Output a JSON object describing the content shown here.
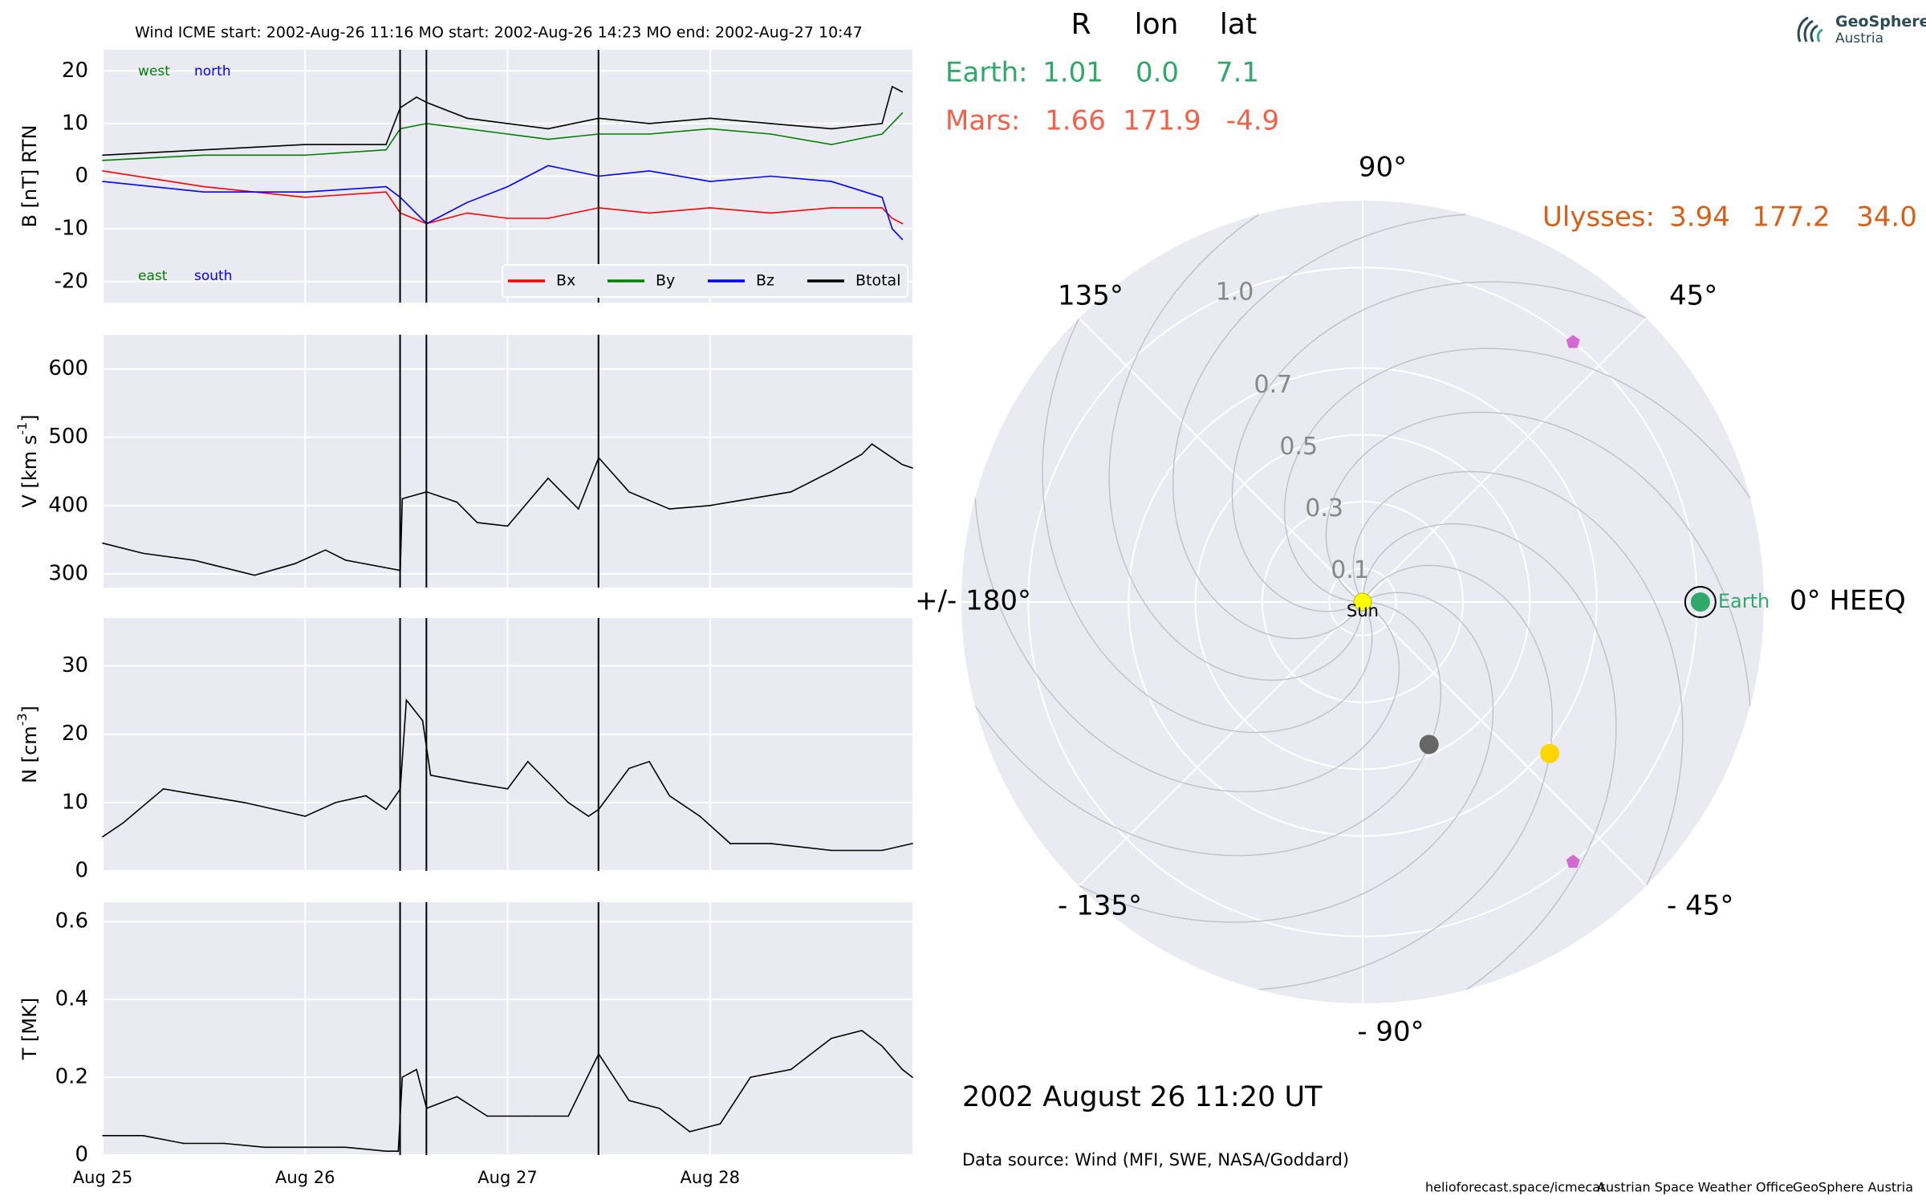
{
  "header": {
    "title": "Wind    ICME start: 2002-Aug-26 11:16   MO start: 2002-Aug-26 14:23   MO end: 2002-Aug-27 10:47"
  },
  "logo": {
    "line1": "GeoSphere",
    "line2": "Austria"
  },
  "positions_table": {
    "columns": [
      "R",
      "lon",
      "lat"
    ],
    "rows": [
      {
        "name": "Earth:",
        "R": "1.01",
        "lon": "0.0",
        "lat": "7.1",
        "color": "#2fa86a"
      },
      {
        "name": "Mars:",
        "R": "1.66",
        "lon": "171.9",
        "lat": "-4.9",
        "color": "#f26149"
      },
      {
        "name": "Ulysses:",
        "R": "3.94",
        "lon": "177.2",
        "lat": "34.0",
        "color": "#d8601a"
      }
    ]
  },
  "datetime": "2002 August 26  11:20 UT",
  "data_source": "Data source: Wind (MFI, SWE, NASA/Goddard)",
  "footer": {
    "left": "helioforecast.space/icmecat",
    "middle": "Austrian Space Weather Office",
    "right": "GeoSphere Austria"
  },
  "colors": {
    "panel_bg": "#eaeaf2",
    "bx": "#ff0000",
    "by": "#008000",
    "bz": "#0000ff",
    "btotal": "#000000",
    "earth": "#2fa86a",
    "mercury": "#666666",
    "venus": "#ffd700",
    "spacecraft": "#d26ad2"
  },
  "chart_data": [
    {
      "type": "line",
      "id": "mag",
      "ylabel": "B [nT] RTN",
      "ylim": [
        -24,
        24
      ],
      "yticks": [
        20,
        10,
        0,
        -10,
        -20
      ],
      "xlim": [
        0,
        4.0
      ],
      "x_unit": "days since 2002-08-25 00:00",
      "x_ticks": [
        0,
        1,
        2,
        3
      ],
      "x_tick_labels": [
        "Aug 25",
        "Aug 26",
        "Aug 27",
        "Aug 28"
      ],
      "event_lines": [
        1.469,
        1.599,
        2.449
      ],
      "annotations": [
        {
          "text": "west",
          "color": "#008000"
        },
        {
          "text": "north",
          "color": "#0000ff"
        },
        {
          "text": "east",
          "color": "#008000"
        },
        {
          "text": "south",
          "color": "#0000ff"
        }
      ],
      "legend": [
        "Bx",
        "By",
        "Bz",
        "Btotal"
      ],
      "legend_position": "lower-right",
      "series": [
        {
          "name": "Btotal",
          "x": [
            0,
            0.5,
            1.0,
            1.4,
            1.47,
            1.55,
            1.6,
            1.8,
            2.0,
            2.2,
            2.45,
            2.7,
            3.0,
            3.3,
            3.6,
            3.85,
            3.9,
            3.95
          ],
          "y": [
            4,
            5,
            6,
            6,
            13,
            15,
            14,
            11,
            10,
            9,
            11,
            10,
            11,
            10,
            9,
            10,
            17,
            16
          ]
        },
        {
          "name": "By",
          "x": [
            0,
            0.5,
            1.0,
            1.4,
            1.47,
            1.6,
            1.8,
            2.0,
            2.2,
            2.45,
            2.7,
            3.0,
            3.3,
            3.6,
            3.85,
            3.9,
            3.95
          ],
          "y": [
            3,
            4,
            4,
            5,
            9,
            10,
            9,
            8,
            7,
            8,
            8,
            9,
            8,
            6,
            8,
            10,
            12
          ]
        },
        {
          "name": "Bx",
          "x": [
            0,
            0.5,
            1.0,
            1.4,
            1.47,
            1.6,
            1.8,
            2.0,
            2.2,
            2.45,
            2.7,
            3.0,
            3.3,
            3.6,
            3.85,
            3.9,
            3.95
          ],
          "y": [
            1,
            -2,
            -4,
            -3,
            -7,
            -9,
            -7,
            -8,
            -8,
            -6,
            -7,
            -6,
            -7,
            -6,
            -6,
            -8,
            -9
          ]
        },
        {
          "name": "Bz",
          "x": [
            0,
            0.5,
            1.0,
            1.4,
            1.47,
            1.6,
            1.8,
            2.0,
            2.2,
            2.45,
            2.7,
            3.0,
            3.3,
            3.6,
            3.85,
            3.9,
            3.95
          ],
          "y": [
            -1,
            -3,
            -3,
            -2,
            -4,
            -9,
            -5,
            -2,
            2,
            0,
            1,
            -1,
            0,
            -1,
            -4,
            -10,
            -12
          ]
        }
      ]
    },
    {
      "type": "line",
      "id": "speed",
      "ylabel": "V [km s$^{-1}$]",
      "ylim": [
        280,
        650
      ],
      "yticks": [
        600,
        500,
        400,
        300
      ],
      "xlim": [
        0,
        4.0
      ],
      "event_lines": [
        1.469,
        1.599,
        2.449
      ],
      "series": [
        {
          "name": "V",
          "x": [
            0,
            0.2,
            0.45,
            0.75,
            0.95,
            1.1,
            1.2,
            1.47,
            1.48,
            1.6,
            1.75,
            1.85,
            2.0,
            2.2,
            2.35,
            2.45,
            2.6,
            2.8,
            3.0,
            3.2,
            3.4,
            3.6,
            3.75,
            3.8,
            3.95,
            4.0
          ],
          "y": [
            345,
            330,
            320,
            298,
            315,
            335,
            320,
            305,
            410,
            420,
            405,
            375,
            370,
            440,
            395,
            470,
            420,
            395,
            400,
            410,
            420,
            450,
            475,
            490,
            460,
            455
          ]
        }
      ]
    },
    {
      "type": "line",
      "id": "density",
      "ylabel": "N [cm$^{-3}$]",
      "ylim": [
        0,
        37
      ],
      "yticks": [
        30,
        20,
        10,
        0
      ],
      "xlim": [
        0,
        4.0
      ],
      "event_lines": [
        1.469,
        1.599,
        2.449
      ],
      "series": [
        {
          "name": "N",
          "x": [
            0,
            0.1,
            0.3,
            0.5,
            0.7,
            0.85,
            1.0,
            1.15,
            1.3,
            1.4,
            1.47,
            1.5,
            1.58,
            1.62,
            1.8,
            2.0,
            2.1,
            2.3,
            2.4,
            2.45,
            2.6,
            2.7,
            2.8,
            2.95,
            3.1,
            3.3,
            3.6,
            3.85,
            4.0
          ],
          "y": [
            5,
            7,
            12,
            11,
            10,
            9,
            8,
            10,
            11,
            9,
            12,
            25,
            22,
            14,
            13,
            12,
            16,
            10,
            8,
            9,
            15,
            16,
            11,
            8,
            4,
            4,
            3,
            3,
            4
          ]
        }
      ]
    },
    {
      "type": "line",
      "id": "temperature",
      "ylabel": "T [MK]",
      "ylim": [
        0,
        0.65
      ],
      "yticks": [
        0.6,
        0.4,
        0.2,
        0.0
      ],
      "xlim": [
        0,
        4.0
      ],
      "x_ticks": [
        0,
        1,
        2,
        3
      ],
      "x_tick_labels": [
        "Aug 25",
        "Aug 26",
        "Aug 27",
        "Aug 28"
      ],
      "event_lines": [
        1.469,
        1.599,
        2.449
      ],
      "series": [
        {
          "name": "T",
          "x": [
            0,
            0.2,
            0.4,
            0.6,
            0.8,
            1.0,
            1.2,
            1.4,
            1.46,
            1.48,
            1.55,
            1.6,
            1.75,
            1.9,
            2.1,
            2.3,
            2.45,
            2.6,
            2.75,
            2.9,
            3.05,
            3.2,
            3.4,
            3.6,
            3.75,
            3.85,
            3.95,
            4.0
          ],
          "y": [
            0.05,
            0.05,
            0.03,
            0.03,
            0.02,
            0.02,
            0.02,
            0.01,
            0.01,
            0.2,
            0.22,
            0.12,
            0.15,
            0.1,
            0.1,
            0.1,
            0.26,
            0.14,
            0.12,
            0.06,
            0.08,
            0.2,
            0.22,
            0.3,
            0.32,
            0.28,
            0.22,
            0.2
          ]
        }
      ]
    },
    {
      "type": "scatter",
      "id": "polar",
      "projection": "polar",
      "r_ticks": [
        0.1,
        0.3,
        0.5,
        0.7,
        1.0
      ],
      "r_tick_labels": [
        "0.1",
        "0.3",
        "0.5",
        "0.7",
        "1.0"
      ],
      "r_max": 1.2,
      "theta_labels": [
        {
          "deg": 0,
          "label": "0° HEEQ"
        },
        {
          "deg": 45,
          "label": "45°"
        },
        {
          "deg": 90,
          "label": "90°"
        },
        {
          "deg": 135,
          "label": "135°"
        },
        {
          "deg": 180,
          "label": "+/- 180°"
        },
        {
          "deg": -135,
          "label": "- 135°"
        },
        {
          "deg": -90,
          "label": "- 90°"
        },
        {
          "deg": -45,
          "label": "- 45°"
        }
      ],
      "objects": [
        {
          "name": "Sun",
          "r": 0,
          "lon": 0,
          "label": "Sun",
          "color": "#ffff00"
        },
        {
          "name": "Earth",
          "r": 1.01,
          "lon": 0,
          "label": "Earth",
          "color": "#2fa86a"
        },
        {
          "name": "Mercury",
          "r": 0.47,
          "lon": -65,
          "label": "",
          "color": "#666666"
        },
        {
          "name": "Venus",
          "r": 0.72,
          "lon": -39,
          "label": "",
          "color": "#ffd700"
        },
        {
          "name": "Spacecraft A",
          "r": 1.0,
          "lon": 51,
          "label": "",
          "color": "#d26ad2"
        },
        {
          "name": "Spacecraft B",
          "r": 1.0,
          "lon": -51,
          "label": "",
          "color": "#d26ad2"
        }
      ]
    }
  ]
}
